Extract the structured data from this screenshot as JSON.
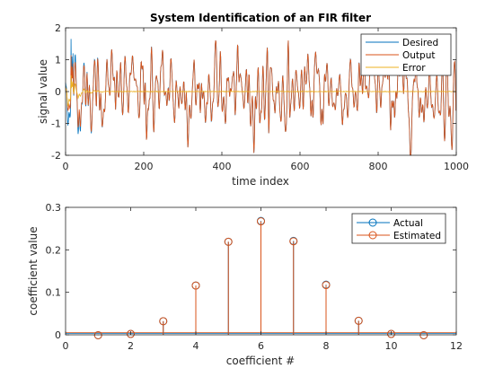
{
  "chart_data": [
    {
      "type": "line",
      "title": "System Identification of an FIR filter",
      "xlabel": "time index",
      "ylabel": "signal value",
      "xlim": [
        0,
        1000
      ],
      "ylim": [
        -2,
        2
      ],
      "xticks": [
        0,
        200,
        400,
        600,
        800,
        1000
      ],
      "yticks": [
        -2,
        -1,
        0,
        1,
        2
      ],
      "grid": false,
      "legend_position": "top-right",
      "n_samples": 1000,
      "series": [
        {
          "name": "Desired",
          "color": "#0072BD",
          "description_values": "Desired response: FIR filter output of white noise input, approx. range [-1.5, 1.7]",
          "sample_points": [
            [
              0,
              0.0
            ],
            [
              10,
              0.6
            ],
            [
              15,
              1.65
            ],
            [
              20,
              0.9
            ],
            [
              30,
              -0.4
            ],
            [
              50,
              0.3
            ],
            [
              100,
              -0.5
            ],
            [
              150,
              0.6
            ],
            [
              200,
              -0.6
            ],
            [
              300,
              0.8
            ],
            [
              330,
              -1.25
            ],
            [
              420,
              0.7
            ],
            [
              500,
              -0.8
            ],
            [
              630,
              1.15
            ],
            [
              650,
              -1.35
            ],
            [
              700,
              1.1
            ],
            [
              740,
              -1.55
            ],
            [
              790,
              0.8
            ],
            [
              850,
              -1.1
            ],
            [
              900,
              0.65
            ],
            [
              940,
              1.3
            ],
            [
              1000,
              0.3
            ]
          ]
        },
        {
          "name": "Output",
          "color": "#D95319",
          "sample_points": [
            [
              0,
              0.0
            ],
            [
              10,
              0.5
            ],
            [
              15,
              1.3
            ],
            [
              20,
              0.8
            ],
            [
              30,
              -0.4
            ],
            [
              50,
              0.3
            ],
            [
              100,
              -0.5
            ],
            [
              150,
              0.6
            ],
            [
              200,
              -0.6
            ],
            [
              300,
              0.8
            ],
            [
              330,
              -1.25
            ],
            [
              420,
              0.7
            ],
            [
              500,
              -0.8
            ],
            [
              630,
              1.15
            ],
            [
              650,
              -1.35
            ],
            [
              700,
              1.1
            ],
            [
              740,
              -1.55
            ],
            [
              790,
              0.8
            ],
            [
              850,
              -1.1
            ],
            [
              900,
              0.65
            ],
            [
              940,
              1.3
            ],
            [
              1000,
              0.3
            ]
          ]
        },
        {
          "name": "Error",
          "color": "#EDB120",
          "sample_points": [
            [
              0,
              0.0
            ],
            [
              10,
              0.3
            ],
            [
              15,
              0.5
            ],
            [
              20,
              0.2
            ],
            [
              40,
              -0.1
            ],
            [
              80,
              0.05
            ],
            [
              150,
              0.0
            ],
            [
              1000,
              0.0
            ]
          ]
        }
      ]
    },
    {
      "type": "stem",
      "title": "",
      "xlabel": "coefficient #",
      "ylabel": "coefficient value",
      "xlim": [
        0,
        12
      ],
      "ylim": [
        0,
        0.3
      ],
      "xticks": [
        0,
        2,
        4,
        6,
        8,
        10,
        12
      ],
      "yticks": [
        0,
        0.1,
        0.2,
        0.3
      ],
      "grid": false,
      "legend_position": "top-right",
      "x": [
        1,
        2,
        3,
        4,
        5,
        6,
        7,
        8,
        9,
        10,
        11
      ],
      "series": [
        {
          "name": "Actual",
          "color": "#0072BD",
          "values": [
            -0.001,
            0.002,
            0.032,
            0.116,
            0.219,
            0.268,
            0.221,
            0.118,
            0.033,
            0.002,
            -0.001
          ]
        },
        {
          "name": "Estimated",
          "color": "#D95319",
          "values": [
            -0.001,
            0.002,
            0.032,
            0.116,
            0.219,
            0.267,
            0.22,
            0.117,
            0.033,
            0.002,
            -0.001
          ]
        }
      ]
    }
  ]
}
